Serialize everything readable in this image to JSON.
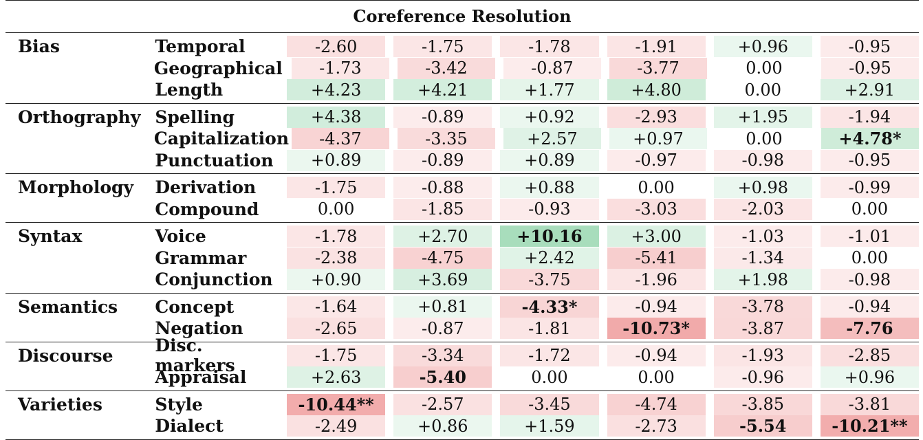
{
  "title": "Coreference Resolution",
  "colors": {
    "green": "#16a34a",
    "red": "#dc2626"
  },
  "groups": [
    {
      "category": "Bias",
      "rows": [
        {
          "name": "Temporal",
          "values": [
            "-2.60",
            "-1.75",
            "-1.78",
            "-1.91",
            "+0.96",
            "-0.95"
          ],
          "bold": []
        },
        {
          "name": "Geographical",
          "values": [
            "-1.73",
            "-3.42",
            "-0.87",
            "-3.77",
            "0.00",
            "-0.95"
          ],
          "bold": []
        },
        {
          "name": "Length",
          "values": [
            "+4.23",
            "+4.21",
            "+1.77",
            "+4.80",
            "0.00",
            "+2.91"
          ],
          "bold": []
        }
      ]
    },
    {
      "category": "Orthography",
      "rows": [
        {
          "name": "Spelling",
          "values": [
            "+4.38",
            "-0.89",
            "+0.92",
            "-2.93",
            "+1.95",
            "-1.94"
          ],
          "bold": []
        },
        {
          "name": "Capitalization",
          "values": [
            "-4.37",
            "-3.35",
            "+2.57",
            "+0.97",
            "0.00",
            "+4.78*"
          ],
          "bold": [
            5
          ]
        },
        {
          "name": "Punctuation",
          "values": [
            "+0.89",
            "-0.89",
            "+0.89",
            "-0.97",
            "-0.98",
            "-0.95"
          ],
          "bold": []
        }
      ]
    },
    {
      "category": "Morphology",
      "rows": [
        {
          "name": "Derivation",
          "values": [
            "-1.75",
            "-0.88",
            "+0.88",
            "0.00",
            "+0.98",
            "-0.99"
          ],
          "bold": []
        },
        {
          "name": "Compound",
          "values": [
            "0.00",
            "-1.85",
            "-0.93",
            "-3.03",
            "-2.03",
            "0.00"
          ],
          "bold": []
        }
      ]
    },
    {
      "category": "Syntax",
      "rows": [
        {
          "name": "Voice",
          "values": [
            "-1.78",
            "+2.70",
            "+10.16",
            "+3.00",
            "-1.03",
            "-1.01"
          ],
          "bold": [
            2
          ]
        },
        {
          "name": "Grammar",
          "values": [
            "-2.38",
            "-4.75",
            "+2.42",
            "-5.41",
            "-1.34",
            "0.00"
          ],
          "bold": []
        },
        {
          "name": "Conjunction",
          "values": [
            "+0.90",
            "+3.69",
            "-3.75",
            "-1.96",
            "+1.98",
            "-0.98"
          ],
          "bold": []
        }
      ]
    },
    {
      "category": "Semantics",
      "rows": [
        {
          "name": "Concept",
          "values": [
            "-1.64",
            "+0.81",
            "-4.33*",
            "-0.94",
            "-3.78",
            "-0.94"
          ],
          "bold": [
            2
          ]
        },
        {
          "name": "Negation",
          "values": [
            "-2.65",
            "-0.87",
            "-1.81",
            "-10.73*",
            "-3.87",
            "-7.76"
          ],
          "bold": [
            3,
            5
          ]
        }
      ]
    },
    {
      "category": "Discourse",
      "rows": [
        {
          "name": "Disc. markers",
          "values": [
            "-1.75",
            "-3.34",
            "-1.72",
            "-0.94",
            "-1.93",
            "-2.85"
          ],
          "bold": []
        },
        {
          "name": "Appraisal",
          "values": [
            "+2.63",
            "-5.40",
            "0.00",
            "0.00",
            "-0.96",
            "+0.96"
          ],
          "bold": [
            1
          ]
        }
      ]
    },
    {
      "category": "Varieties",
      "rows": [
        {
          "name": "Style",
          "values": [
            "-10.44**",
            "-2.57",
            "-3.45",
            "-4.74",
            "-3.85",
            "-3.81"
          ],
          "bold": [
            0
          ]
        },
        {
          "name": "Dialect",
          "values": [
            "-2.49",
            "+0.86",
            "+1.59",
            "-2.73",
            "-5.54",
            "-10.21**"
          ],
          "bold": [
            4,
            5
          ]
        }
      ]
    }
  ]
}
